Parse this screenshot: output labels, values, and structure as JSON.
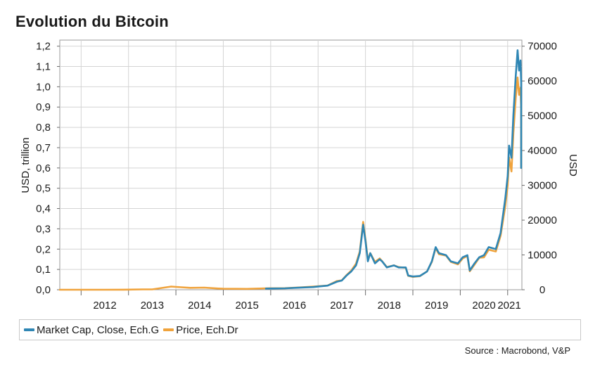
{
  "title": "Evolution du Bitcoin",
  "source": "Source : Macrobond, V&P",
  "colors": {
    "market_cap": "#2f86b4",
    "price": "#f0a33c",
    "grid": "#d4d4d4",
    "frame": "#9a9a9a"
  },
  "chart_data": {
    "type": "line",
    "title": "Evolution du Bitcoin",
    "x_range": [
      2011.55,
      2021.3
    ],
    "x_ticks": [
      {
        "label": "2012",
        "x": 2012
      },
      {
        "label": "2013",
        "x": 2013
      },
      {
        "label": "2014",
        "x": 2014
      },
      {
        "label": "2015",
        "x": 2015
      },
      {
        "label": "2016",
        "x": 2016
      },
      {
        "label": "2017",
        "x": 2017
      },
      {
        "label": "2018",
        "x": 2018
      },
      {
        "label": "2019",
        "x": 2019
      },
      {
        "label": "2020",
        "x": 2020
      },
      {
        "label": "2021",
        "x": 2021
      }
    ],
    "y_left": {
      "label": "USD, trillion",
      "range": [
        0,
        1.23
      ],
      "ticks": [
        "0,0",
        "0,1",
        "0,2",
        "0,3",
        "0,4",
        "0,5",
        "0,6",
        "0,7",
        "0,8",
        "0,9",
        "1,0",
        "1,1",
        "1,2"
      ]
    },
    "y_right": {
      "label": "USD",
      "range": [
        0,
        71750
      ],
      "ticks": [
        "0",
        "10000",
        "20000",
        "30000",
        "40000",
        "50000",
        "60000",
        "70000"
      ]
    },
    "grid": true,
    "legend_position": "bottom",
    "series": [
      {
        "name": "Market Cap, Close, Ech.G",
        "axis": "left",
        "points": [
          [
            2015.9,
            0.006
          ],
          [
            2016.3,
            0.007
          ],
          [
            2016.6,
            0.01
          ],
          [
            2016.9,
            0.013
          ],
          [
            2017.0,
            0.016
          ],
          [
            2017.2,
            0.02
          ],
          [
            2017.4,
            0.04
          ],
          [
            2017.5,
            0.045
          ],
          [
            2017.6,
            0.07
          ],
          [
            2017.7,
            0.09
          ],
          [
            2017.8,
            0.12
          ],
          [
            2017.88,
            0.18
          ],
          [
            2017.95,
            0.32
          ],
          [
            2018.0,
            0.24
          ],
          [
            2018.05,
            0.14
          ],
          [
            2018.1,
            0.18
          ],
          [
            2018.2,
            0.13
          ],
          [
            2018.3,
            0.15
          ],
          [
            2018.35,
            0.14
          ],
          [
            2018.45,
            0.11
          ],
          [
            2018.6,
            0.12
          ],
          [
            2018.7,
            0.11
          ],
          [
            2018.85,
            0.11
          ],
          [
            2018.9,
            0.07
          ],
          [
            2019.0,
            0.065
          ],
          [
            2019.15,
            0.068
          ],
          [
            2019.3,
            0.09
          ],
          [
            2019.4,
            0.14
          ],
          [
            2019.48,
            0.21
          ],
          [
            2019.55,
            0.18
          ],
          [
            2019.7,
            0.17
          ],
          [
            2019.8,
            0.14
          ],
          [
            2019.95,
            0.13
          ],
          [
            2020.05,
            0.16
          ],
          [
            2020.15,
            0.17
          ],
          [
            2020.2,
            0.095
          ],
          [
            2020.3,
            0.13
          ],
          [
            2020.4,
            0.16
          ],
          [
            2020.5,
            0.17
          ],
          [
            2020.6,
            0.21
          ],
          [
            2020.75,
            0.2
          ],
          [
            2020.85,
            0.28
          ],
          [
            2020.95,
            0.45
          ],
          [
            2021.0,
            0.56
          ],
          [
            2021.03,
            0.71
          ],
          [
            2021.08,
            0.65
          ],
          [
            2021.12,
            0.86
          ],
          [
            2021.17,
            1.05
          ],
          [
            2021.21,
            1.18
          ],
          [
            2021.24,
            1.08
          ],
          [
            2021.27,
            1.13
          ],
          [
            2021.3,
            1.02
          ],
          [
            2021.33,
            0.96
          ],
          [
            2021.36,
            0.65
          ],
          [
            2021.38,
            0.6
          ]
        ]
      },
      {
        "name": "Price, Ech.Dr",
        "axis": "right",
        "points": [
          [
            2011.55,
            8
          ],
          [
            2012.0,
            5
          ],
          [
            2012.5,
            8
          ],
          [
            2012.9,
            13
          ],
          [
            2013.3,
            100
          ],
          [
            2013.5,
            100
          ],
          [
            2013.9,
            900
          ],
          [
            2014.0,
            800
          ],
          [
            2014.3,
            550
          ],
          [
            2014.6,
            600
          ],
          [
            2014.9,
            350
          ],
          [
            2015.0,
            280
          ],
          [
            2015.5,
            250
          ],
          [
            2015.9,
            400
          ],
          [
            2016.3,
            450
          ],
          [
            2016.6,
            650
          ],
          [
            2016.9,
            900
          ],
          [
            2017.0,
            1000
          ],
          [
            2017.2,
            1200
          ],
          [
            2017.4,
            2500
          ],
          [
            2017.5,
            2700
          ],
          [
            2017.6,
            4200
          ],
          [
            2017.7,
            5500
          ],
          [
            2017.8,
            7500
          ],
          [
            2017.88,
            11000
          ],
          [
            2017.95,
            19500
          ],
          [
            2018.0,
            14500
          ],
          [
            2018.05,
            8500
          ],
          [
            2018.1,
            10500
          ],
          [
            2018.2,
            8000
          ],
          [
            2018.3,
            9000
          ],
          [
            2018.35,
            8200
          ],
          [
            2018.45,
            6500
          ],
          [
            2018.6,
            7000
          ],
          [
            2018.7,
            6500
          ],
          [
            2018.85,
            6300
          ],
          [
            2018.9,
            4000
          ],
          [
            2019.0,
            3700
          ],
          [
            2019.15,
            3900
          ],
          [
            2019.3,
            5300
          ],
          [
            2019.4,
            8000
          ],
          [
            2019.48,
            12000
          ],
          [
            2019.55,
            10200
          ],
          [
            2019.7,
            9800
          ],
          [
            2019.8,
            8000
          ],
          [
            2019.95,
            7300
          ],
          [
            2020.05,
            9000
          ],
          [
            2020.15,
            9700
          ],
          [
            2020.2,
            5300
          ],
          [
            2020.3,
            7200
          ],
          [
            2020.4,
            9200
          ],
          [
            2020.5,
            9300
          ],
          [
            2020.6,
            11500
          ],
          [
            2020.75,
            11000
          ],
          [
            2020.85,
            15500
          ],
          [
            2020.95,
            24000
          ],
          [
            2021.0,
            30000
          ],
          [
            2021.03,
            38000
          ],
          [
            2021.08,
            34000
          ],
          [
            2021.12,
            45000
          ],
          [
            2021.17,
            55000
          ],
          [
            2021.21,
            61000
          ],
          [
            2021.24,
            56000
          ],
          [
            2021.27,
            58000
          ],
          [
            2021.3,
            52000
          ],
          [
            2021.33,
            49000
          ],
          [
            2021.36,
            36000
          ],
          [
            2021.38,
            35000
          ]
        ]
      }
    ]
  }
}
